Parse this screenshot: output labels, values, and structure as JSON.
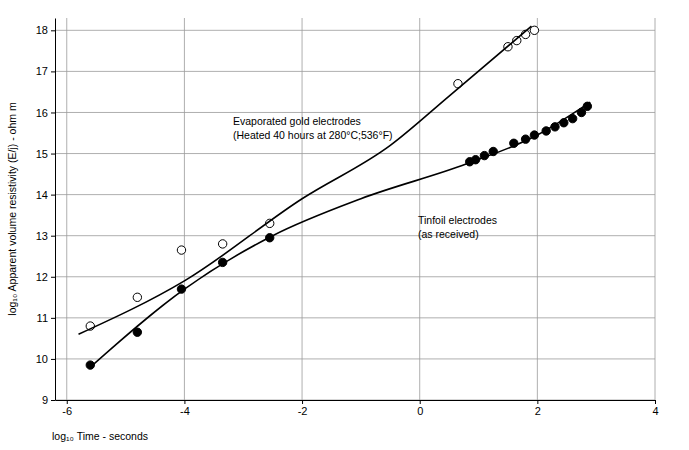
{
  "chart_data": {
    "type": "scatter",
    "x_label": "log₁₀ Time - seconds",
    "y_label": "log₁₀ Apparent volume resistivity (E/j) - ohm m",
    "annotations": [
      "Evaporated gold electrodes",
      "(Heated 40 hours at 280°C;536°F)",
      "Tinfoil electrodes",
      "(as received)"
    ],
    "xlim": [
      -6.2,
      4
    ],
    "xticks": [
      -6,
      -4,
      -2,
      0,
      2,
      4
    ],
    "ylim": [
      9,
      18.3
    ],
    "yticks": [
      9,
      10,
      11,
      12,
      13,
      14,
      15,
      16,
      17,
      18
    ],
    "grid": true,
    "series": [
      {
        "type": "scatter",
        "marker": "open",
        "color": "#000000",
        "x": [
          -5.6,
          -4.8,
          -4.05,
          -3.35,
          -2.55,
          0.65,
          1.5,
          1.65,
          1.8,
          1.95
        ],
        "values": [
          10.8,
          11.5,
          12.65,
          12.8,
          13.3,
          16.7,
          17.6,
          17.75,
          17.9,
          18.0
        ]
      },
      {
        "type": "line",
        "line_style": "solid",
        "color": "#000000",
        "x": [
          -5.8,
          -4,
          -2,
          -0.5,
          0.5,
          1.9
        ],
        "values": [
          10.6,
          11.9,
          13.9,
          15.2,
          16.4,
          18.1
        ]
      },
      {
        "type": "scatter",
        "marker": "filled",
        "color": "#000000",
        "x": [
          -5.6,
          -4.8,
          -4.05,
          -3.35,
          -2.55,
          0.85,
          0.95,
          1.1,
          1.25,
          1.6,
          1.8,
          1.95,
          2.15,
          2.3,
          2.45,
          2.6,
          2.75,
          2.85
        ],
        "values": [
          9.85,
          10.65,
          11.7,
          12.35,
          12.95,
          14.8,
          14.85,
          14.95,
          15.05,
          15.25,
          15.35,
          15.45,
          15.55,
          15.65,
          15.75,
          15.85,
          16.0,
          16.15
        ]
      },
      {
        "type": "line",
        "line_style": "solid",
        "color": "#000000",
        "x": [
          -5.6,
          -4,
          -2.5,
          -1,
          0.8,
          2,
          2.9
        ],
        "values": [
          9.8,
          11.7,
          13.0,
          13.9,
          14.75,
          15.45,
          16.25
        ]
      }
    ]
  }
}
